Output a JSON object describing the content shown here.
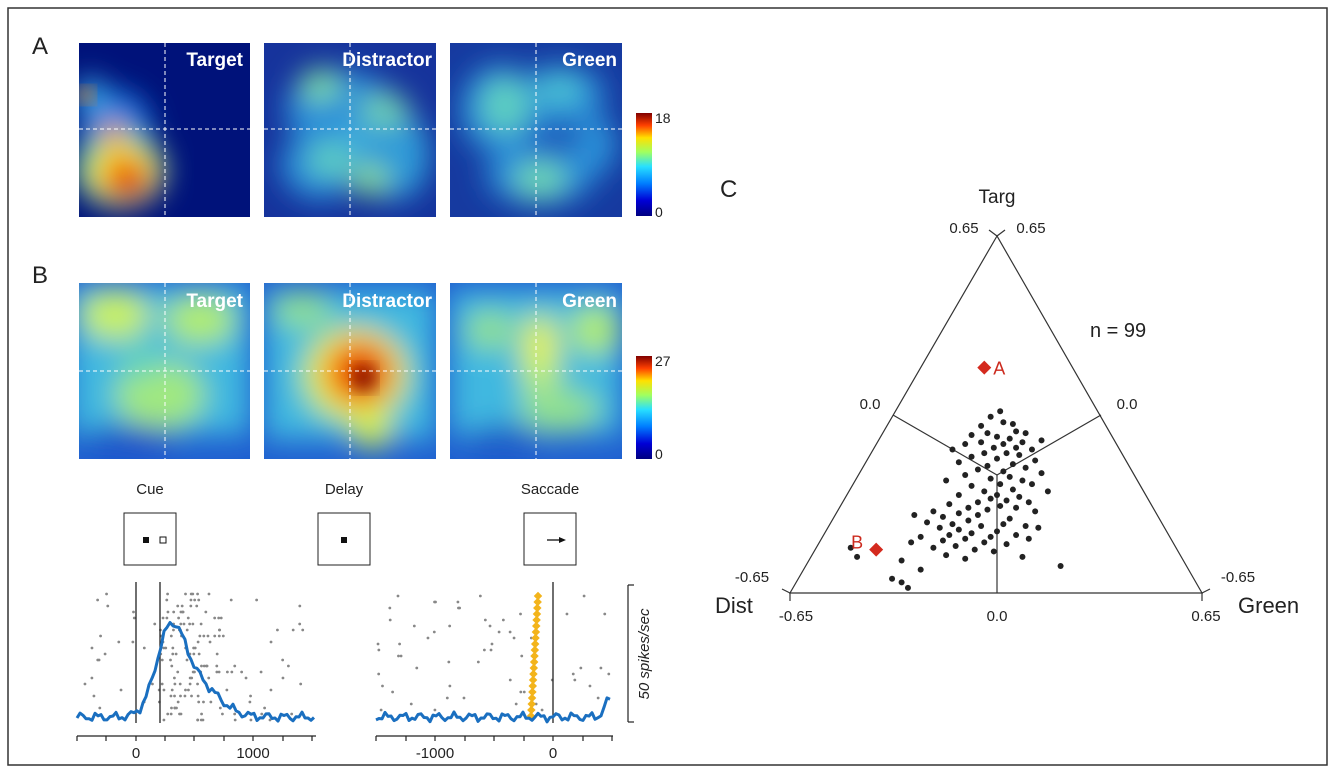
{
  "panels": {
    "a": {
      "label": "A",
      "maps": [
        {
          "title": "Target"
        },
        {
          "title": "Distractor"
        },
        {
          "title": "Green"
        }
      ],
      "colorbar": {
        "max_label": "18",
        "min_label": "0"
      }
    },
    "b": {
      "label": "B",
      "maps": [
        {
          "title": "Target"
        },
        {
          "title": "Distractor"
        },
        {
          "title": "Green"
        }
      ],
      "colorbar": {
        "max_label": "27",
        "min_label": "0"
      },
      "epochs": [
        {
          "label": "Cue"
        },
        {
          "label": "Delay"
        },
        {
          "label": "Saccade"
        }
      ],
      "scale_bar_label": "50 spikes/sec",
      "left_axis_ticks": [
        "0",
        "1000"
      ],
      "right_axis_ticks": [
        "-1000",
        "0"
      ]
    },
    "c": {
      "label": "C",
      "n_label": "n = 99"
    }
  },
  "colors": {
    "trace": "#1a6fc0",
    "highlight": "#d42a1e",
    "saccade_marker": "#f3b41b",
    "raster": "#888888",
    "scatter": "#222222"
  },
  "chart_data": {
    "type": "scatter",
    "subtype": "ternary",
    "title": "",
    "vertices": {
      "top": "Targ",
      "left": "Dist",
      "right": "Green"
    },
    "n": 99,
    "axis_range": [
      -0.65,
      0.65
    ],
    "tick_labels": {
      "top_left": "0.65",
      "top_right": "0.65",
      "mid_left": "0.0",
      "mid_right": "0.0",
      "bottom_left_side": "-0.65",
      "bottom_right_side": "-0.65",
      "x_left": "-0.65",
      "x_center": "0.0",
      "x_right": "0.65"
    },
    "highlighted": [
      {
        "label": "A",
        "x": -0.04,
        "y": 0.59
      },
      {
        "label": "B",
        "x": -0.38,
        "y": -0.41
      }
    ],
    "points": [
      [
        0.01,
        0.35
      ],
      [
        -0.02,
        0.32
      ],
      [
        0.02,
        0.29
      ],
      [
        0.05,
        0.28
      ],
      [
        -0.05,
        0.27
      ],
      [
        0.06,
        0.24
      ],
      [
        0.09,
        0.23
      ],
      [
        -0.03,
        0.23
      ],
      [
        -0.08,
        0.22
      ],
      [
        0.0,
        0.21
      ],
      [
        0.04,
        0.2
      ],
      [
        0.14,
        0.19
      ],
      [
        -0.05,
        0.18
      ],
      [
        0.08,
        0.18
      ],
      [
        0.02,
        0.17
      ],
      [
        -0.1,
        0.17
      ],
      [
        0.06,
        0.15
      ],
      [
        -0.01,
        0.15
      ],
      [
        0.11,
        0.14
      ],
      [
        -0.14,
        0.14
      ],
      [
        0.03,
        0.12
      ],
      [
        -0.04,
        0.12
      ],
      [
        0.07,
        0.11
      ],
      [
        -0.08,
        0.1
      ],
      [
        0.0,
        0.09
      ],
      [
        0.12,
        0.08
      ],
      [
        -0.12,
        0.07
      ],
      [
        0.05,
        0.06
      ],
      [
        -0.03,
        0.05
      ],
      [
        0.09,
        0.04
      ],
      [
        -0.06,
        0.03
      ],
      [
        0.02,
        0.02
      ],
      [
        0.14,
        0.01
      ],
      [
        -0.1,
        0.0
      ],
      [
        0.04,
        -0.01
      ],
      [
        -0.02,
        -0.02
      ],
      [
        0.08,
        -0.03
      ],
      [
        -0.16,
        -0.03
      ],
      [
        0.01,
        -0.05
      ],
      [
        0.11,
        -0.05
      ],
      [
        -0.08,
        -0.06
      ],
      [
        0.05,
        -0.08
      ],
      [
        -0.04,
        -0.09
      ],
      [
        0.16,
        -0.09
      ],
      [
        0.0,
        -0.11
      ],
      [
        -0.12,
        -0.11
      ],
      [
        0.07,
        -0.12
      ],
      [
        -0.02,
        -0.13
      ],
      [
        0.03,
        -0.14
      ],
      [
        -0.06,
        -0.15
      ],
      [
        0.1,
        -0.15
      ],
      [
        -0.15,
        -0.16
      ],
      [
        0.01,
        -0.17
      ],
      [
        -0.09,
        -0.18
      ],
      [
        0.06,
        -0.18
      ],
      [
        -0.03,
        -0.19
      ],
      [
        -0.2,
        -0.2
      ],
      [
        0.12,
        -0.2
      ],
      [
        -0.12,
        -0.21
      ],
      [
        -0.06,
        -0.22
      ],
      [
        -0.26,
        -0.22
      ],
      [
        -0.17,
        -0.23
      ],
      [
        0.04,
        -0.24
      ],
      [
        -0.09,
        -0.25
      ],
      [
        -0.22,
        -0.26
      ],
      [
        -0.14,
        -0.27
      ],
      [
        0.02,
        -0.27
      ],
      [
        0.09,
        -0.28
      ],
      [
        -0.05,
        -0.28
      ],
      [
        -0.18,
        -0.29
      ],
      [
        0.13,
        -0.29
      ],
      [
        -0.12,
        -0.3
      ],
      [
        0.0,
        -0.31
      ],
      [
        -0.08,
        -0.32
      ],
      [
        -0.15,
        -0.33
      ],
      [
        0.06,
        -0.33
      ],
      [
        -0.02,
        -0.34
      ],
      [
        -0.24,
        -0.34
      ],
      [
        -0.1,
        -0.35
      ],
      [
        0.1,
        -0.35
      ],
      [
        -0.17,
        -0.36
      ],
      [
        -0.04,
        -0.37
      ],
      [
        -0.27,
        -0.37
      ],
      [
        0.03,
        -0.38
      ],
      [
        -0.13,
        -0.39
      ],
      [
        -0.2,
        -0.4
      ],
      [
        -0.07,
        -0.41
      ],
      [
        -0.46,
        -0.4
      ],
      [
        -0.44,
        -0.45
      ],
      [
        -0.01,
        -0.42
      ],
      [
        -0.16,
        -0.44
      ],
      [
        -0.1,
        -0.46
      ],
      [
        -0.3,
        -0.47
      ],
      [
        0.2,
        -0.5
      ],
      [
        -0.24,
        -0.52
      ],
      [
        -0.33,
        -0.57
      ],
      [
        -0.3,
        -0.59
      ],
      [
        -0.28,
        -0.62
      ],
      [
        0.08,
        -0.45
      ]
    ]
  }
}
